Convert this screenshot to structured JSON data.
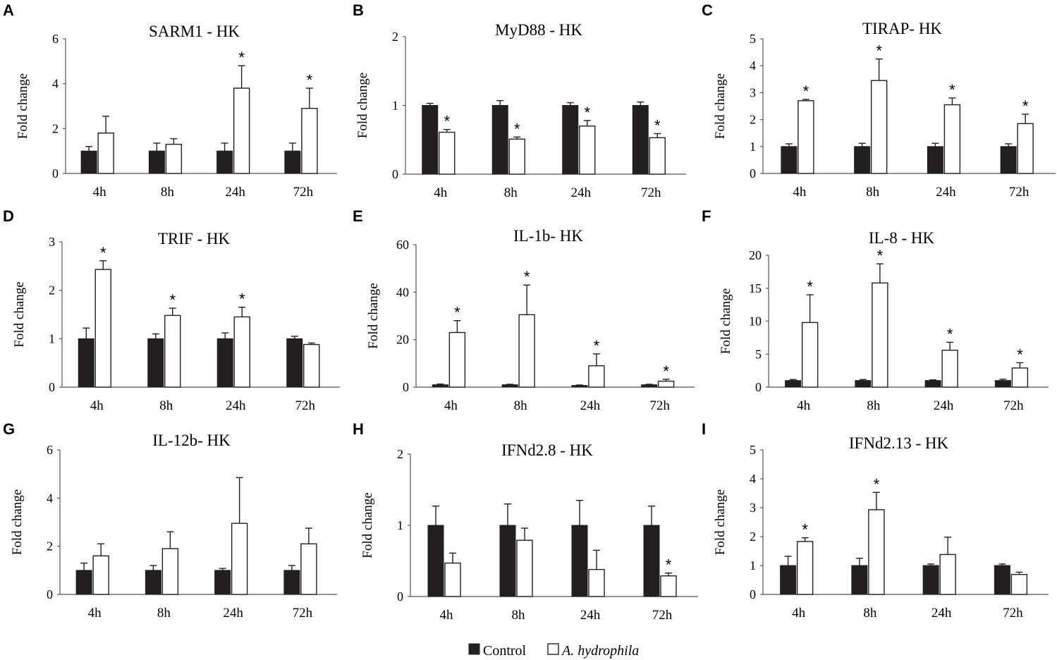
{
  "legend": {
    "control_label": "Control",
    "treatment_label": "A. hydrophila",
    "control_color": "#231f20",
    "treatment_color": "#ffffff"
  },
  "chart_data": [
    {
      "panel": "A",
      "type": "bar",
      "title": "SARM1 - HK",
      "ylabel": "Fold change",
      "categories": [
        "4h",
        "8h",
        "24h",
        "72h"
      ],
      "ylim": [
        0,
        6
      ],
      "yticks": [
        "0",
        "2",
        "4",
        "6"
      ],
      "series": [
        {
          "name": "Control",
          "values": [
            1,
            1,
            1,
            1
          ],
          "errors": [
            0.2,
            0.35,
            0.35,
            0.35
          ]
        },
        {
          "name": "A. hydrophila",
          "values": [
            1.8,
            1.3,
            3.8,
            2.9
          ],
          "errors": [
            0.75,
            0.25,
            1.0,
            0.9
          ]
        }
      ],
      "significance": [
        "",
        "",
        "*",
        "*"
      ]
    },
    {
      "panel": "B",
      "type": "bar",
      "title": "MyD88 - HK",
      "ylabel": "Fold change",
      "categories": [
        "4h",
        "8h",
        "24h",
        "72h"
      ],
      "ylim": [
        0,
        2
      ],
      "yticks": [
        "0",
        "1",
        "2"
      ],
      "series": [
        {
          "name": "Control",
          "values": [
            1,
            1,
            1,
            1
          ],
          "errors": [
            0.03,
            0.07,
            0.04,
            0.05
          ]
        },
        {
          "name": "A. hydrophila",
          "values": [
            0.61,
            0.51,
            0.7,
            0.53
          ],
          "errors": [
            0.04,
            0.03,
            0.08,
            0.06
          ]
        }
      ],
      "significance": [
        "*",
        "*",
        "*",
        "*"
      ]
    },
    {
      "panel": "C",
      "type": "bar",
      "title": "TIRAP- HK",
      "ylabel": "Fold change",
      "categories": [
        "4h",
        "8h",
        "24h",
        "72h"
      ],
      "ylim": [
        0,
        5
      ],
      "yticks": [
        "0",
        "1",
        "2",
        "3",
        "4",
        "5"
      ],
      "series": [
        {
          "name": "Control",
          "values": [
            1,
            1,
            1,
            1
          ],
          "errors": [
            0.1,
            0.12,
            0.12,
            0.1
          ]
        },
        {
          "name": "A. hydrophila",
          "values": [
            2.7,
            3.45,
            2.55,
            1.85
          ],
          "errors": [
            0.05,
            0.8,
            0.25,
            0.35
          ]
        }
      ],
      "significance": [
        "*",
        "*",
        "*",
        "*"
      ]
    },
    {
      "panel": "D",
      "type": "bar",
      "title": "TRIF - HK",
      "ylabel": "Fold change",
      "categories": [
        "4h",
        "8h",
        "24h",
        "72h"
      ],
      "ylim": [
        0,
        3
      ],
      "yticks": [
        "0",
        "1",
        "2",
        "3"
      ],
      "series": [
        {
          "name": "Control",
          "values": [
            1,
            1,
            1,
            1
          ],
          "errors": [
            0.22,
            0.1,
            0.12,
            0.05
          ]
        },
        {
          "name": "A. hydrophila",
          "values": [
            2.43,
            1.48,
            1.45,
            0.88
          ],
          "errors": [
            0.18,
            0.15,
            0.2,
            0.03
          ]
        }
      ],
      "significance": [
        "*",
        "*",
        "*",
        ""
      ]
    },
    {
      "panel": "E",
      "type": "bar",
      "title": "IL-1b- HK",
      "ylabel": "Fold change",
      "categories": [
        "4h",
        "8h",
        "24h",
        "72h"
      ],
      "ylim": [
        0,
        60
      ],
      "yticks": [
        "0",
        "20",
        "40",
        "60"
      ],
      "series": [
        {
          "name": "Control",
          "values": [
            1,
            1,
            0.7,
            1
          ],
          "errors": [
            0.3,
            0.2,
            0.2,
            0.2
          ]
        },
        {
          "name": "A. hydrophila",
          "values": [
            23,
            30.5,
            9,
            2.5
          ],
          "errors": [
            5,
            12.5,
            5,
            0.8
          ]
        }
      ],
      "significance": [
        "*",
        "*",
        "*",
        "*"
      ]
    },
    {
      "panel": "F",
      "type": "bar",
      "title": "IL-8 - HK",
      "ylabel": "Fold change",
      "categories": [
        "4h",
        "8h",
        "24h",
        "72h"
      ],
      "ylim": [
        0,
        20
      ],
      "yticks": [
        "0",
        "5",
        "10",
        "15",
        "20"
      ],
      "series": [
        {
          "name": "Control",
          "values": [
            1,
            1,
            1,
            1
          ],
          "errors": [
            0.15,
            0.15,
            0.1,
            0.2
          ]
        },
        {
          "name": "A. hydrophila",
          "values": [
            9.8,
            15.8,
            5.6,
            2.9
          ],
          "errors": [
            4.2,
            2.9,
            1.2,
            0.8
          ]
        }
      ],
      "significance": [
        "*",
        "*",
        "*",
        "*"
      ]
    },
    {
      "panel": "G",
      "type": "bar",
      "title": "IL-12b- HK",
      "ylabel": "Fold change",
      "categories": [
        "4h",
        "8h",
        "24h",
        "72h"
      ],
      "ylim": [
        0,
        6
      ],
      "yticks": [
        "0",
        "2",
        "4",
        "6"
      ],
      "series": [
        {
          "name": "Control",
          "values": [
            1,
            1,
            1,
            1
          ],
          "errors": [
            0.3,
            0.2,
            0.08,
            0.2
          ]
        },
        {
          "name": "A. hydrophila",
          "values": [
            1.6,
            1.9,
            2.95,
            2.1
          ],
          "errors": [
            0.5,
            0.7,
            1.9,
            0.65
          ]
        }
      ],
      "significance": [
        "",
        "",
        "",
        ""
      ]
    },
    {
      "panel": "H",
      "type": "bar",
      "title": "IFNd2.8 - HK",
      "ylabel": "Fold change",
      "categories": [
        "4h",
        "8h",
        "24h",
        "72h"
      ],
      "ylim": [
        0,
        2
      ],
      "yticks": [
        "0",
        "1",
        "2"
      ],
      "series": [
        {
          "name": "Control",
          "values": [
            1,
            1,
            1,
            1
          ],
          "errors": [
            0.27,
            0.3,
            0.35,
            0.27
          ]
        },
        {
          "name": "A. hydrophila",
          "values": [
            0.47,
            0.79,
            0.38,
            0.29
          ],
          "errors": [
            0.14,
            0.17,
            0.27,
            0.04
          ]
        }
      ],
      "significance": [
        "",
        "",
        "",
        "*"
      ]
    },
    {
      "panel": "I",
      "type": "bar",
      "title": "IFNd2.13 - HK",
      "ylabel": "Fold change",
      "categories": [
        "4h",
        "8h",
        "24h",
        "72h"
      ],
      "ylim": [
        0,
        5
      ],
      "yticks": [
        "0",
        "1",
        "2",
        "3",
        "4",
        "5"
      ],
      "series": [
        {
          "name": "Control",
          "values": [
            1,
            1,
            1,
            1
          ],
          "errors": [
            0.32,
            0.25,
            0.05,
            0.05
          ]
        },
        {
          "name": "A. hydrophila",
          "values": [
            1.83,
            2.93,
            1.38,
            0.69
          ],
          "errors": [
            0.13,
            0.6,
            0.6,
            0.08
          ]
        }
      ],
      "significance": [
        "*",
        "*",
        "",
        ""
      ]
    }
  ]
}
